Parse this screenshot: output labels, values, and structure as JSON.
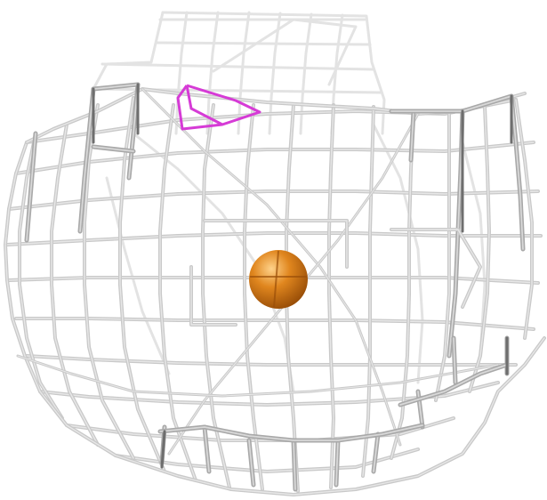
{
  "scene": {
    "background_color": "#ffffff",
    "mesh_colors": {
      "back": "#e3e3e3",
      "mid": "#c9c9c9",
      "front": "#a9a9a9",
      "edge_dark": "#6e6e6e",
      "highlight": "#ffffff"
    },
    "marker_color": "#d63bd6",
    "sphere": {
      "label": "orange-atom-sphere",
      "base_color": "#e0861e",
      "shadow_color": "#9a4f08",
      "highlight_color": "#ffd28a"
    },
    "icons": [
      "wireframe-mesh-icon",
      "atom-sphere-icon",
      "selection-marker-icon"
    ]
  }
}
